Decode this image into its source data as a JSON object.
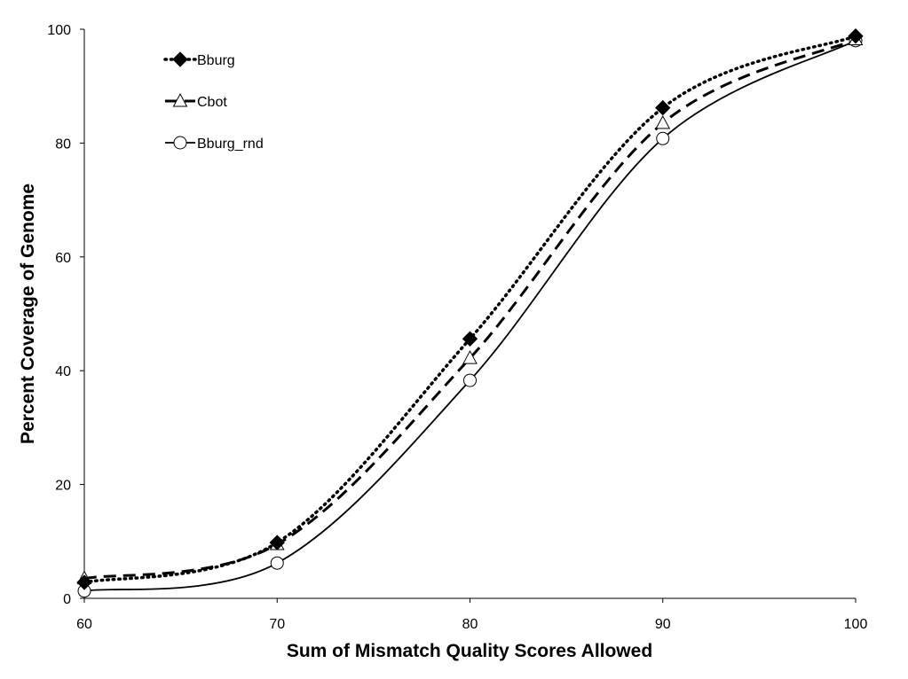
{
  "chart_data": {
    "type": "line",
    "title": "",
    "xlabel": "Sum of Mismatch Quality Scores Allowed",
    "ylabel": "Percent Coverage of Genome",
    "x": [
      60,
      70,
      80,
      90,
      100
    ],
    "xlim": [
      60,
      100
    ],
    "ylim": [
      0,
      100
    ],
    "xticks": [
      "60",
      "70",
      "80",
      "90",
      "100"
    ],
    "yticks": [
      "0",
      "20",
      "40",
      "60",
      "80",
      "100"
    ],
    "grid": false,
    "legend_position": "top-left",
    "series": [
      {
        "name": "Bburg",
        "values": [
          2.8,
          9.8,
          45.6,
          86.2,
          98.8
        ],
        "line_style": "dotted",
        "marker": "filled-diamond",
        "color": "#000000"
      },
      {
        "name": "Cbot",
        "values": [
          3.5,
          9.5,
          42.2,
          83.5,
          98.2
        ],
        "line_style": "dashed",
        "marker": "open-triangle",
        "color": "#000000"
      },
      {
        "name": "Bburg_rnd",
        "values": [
          1.3,
          6.2,
          38.3,
          80.8,
          98.0
        ],
        "line_style": "solid",
        "marker": "open-circle",
        "color": "#000000"
      }
    ]
  }
}
